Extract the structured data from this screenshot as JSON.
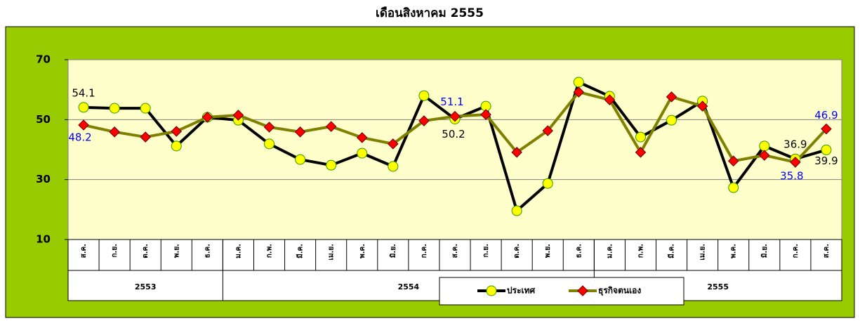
{
  "chart_data": {
    "type": "line",
    "title": "เดือนสิงหาคม 2555",
    "categories": [
      "ส.ค.",
      "ก.ย.",
      "ต.ค.",
      "พ.ย.",
      "ธ.ค.",
      "ม.ค.",
      "ก.พ.",
      "มี.ค.",
      "เม.ย.",
      "พ.ค.",
      "มิ.ย.",
      "ก.ค.",
      "ส.ค.",
      "ก.ย.",
      "ต.ค.",
      "พ.ย.",
      "ธ.ค.",
      "ม.ค.",
      "ก.พ.",
      "มี.ค.",
      "เม.ย.",
      "พ.ค.",
      "มิ.ย.",
      "ก.ค.",
      "ส.ค."
    ],
    "category_groups": [
      "2553",
      "2553",
      "2553",
      "2553",
      "2553",
      "2554",
      "2554",
      "2554",
      "2554",
      "2554",
      "2554",
      "2554",
      "2554",
      "2554",
      "2554",
      "2554",
      "2554",
      "2555",
      "2555",
      "2555",
      "2555",
      "2555",
      "2555",
      "2555",
      "2555"
    ],
    "series": [
      {
        "name": "ประเทศ",
        "color": "#000000",
        "marker_color": "#ffff00",
        "label_color": "#000000",
        "values": [
          54.1,
          53.8,
          53.8,
          41.2,
          50.8,
          49.8,
          41.9,
          36.7,
          34.8,
          38.8,
          34.4,
          58.0,
          50.2,
          54.5,
          19.6,
          28.7,
          62.5,
          57.8,
          44.2,
          49.8,
          56.2,
          27.3,
          41.2,
          36.9,
          39.9
        ],
        "value_labels": [
          "54.1",
          null,
          null,
          null,
          null,
          null,
          null,
          null,
          null,
          null,
          null,
          null,
          "50.2",
          null,
          null,
          null,
          null,
          null,
          null,
          null,
          null,
          null,
          null,
          "36.9",
          "39.9"
        ]
      },
      {
        "name": "ธุรกิจตนเอง",
        "color": "#808000",
        "marker_color": "#ff0000",
        "label_color": "#0000ff",
        "values": [
          48.2,
          45.9,
          44.2,
          46.1,
          50.8,
          51.5,
          47.5,
          45.9,
          47.7,
          44.0,
          41.9,
          49.6,
          51.1,
          51.7,
          39.1,
          46.3,
          59.2,
          56.6,
          39.1,
          57.6,
          54.5,
          36.2,
          38.1,
          35.8,
          46.9
        ],
        "value_labels": [
          "48.2",
          null,
          null,
          null,
          null,
          null,
          null,
          null,
          null,
          null,
          null,
          null,
          "51.1",
          null,
          null,
          null,
          null,
          null,
          null,
          null,
          null,
          null,
          null,
          "35.8",
          "46.9"
        ]
      }
    ],
    "ylim": [
      10,
      70
    ],
    "yticks": [
      10,
      30,
      50,
      70
    ],
    "grid": true
  }
}
